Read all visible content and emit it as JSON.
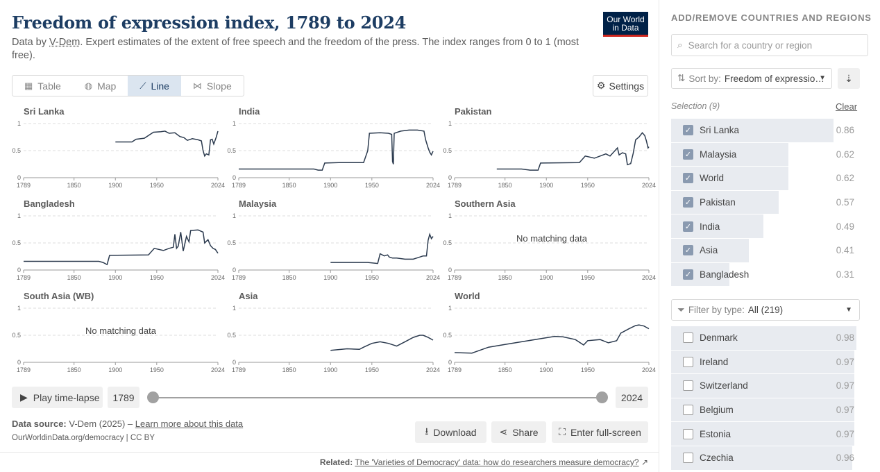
{
  "header": {
    "title": "Freedom of expression index, 1789 to 2024",
    "subtitle_prefix": "Data by ",
    "subtitle_source": "V-Dem",
    "subtitle_rest": ". Expert estimates of the extent of free speech and the freedom of the press. The index ranges from 0 to 1 (most free).",
    "logo_line1": "Our World",
    "logo_line2": "in Data"
  },
  "tabs": [
    {
      "label": "Table",
      "icon": "table-icon",
      "glyph": "▦"
    },
    {
      "label": "Map",
      "icon": "globe-icon",
      "glyph": "◍"
    },
    {
      "label": "Line",
      "icon": "line-chart-icon",
      "glyph": "⟋",
      "active": true
    },
    {
      "label": "Slope",
      "icon": "slope-icon",
      "glyph": "⋈"
    }
  ],
  "settings_label": "Settings",
  "chart_data": {
    "type": "line",
    "layout": "small-multiples",
    "x_ticks": [
      1789,
      1850,
      1900,
      1950,
      2024
    ],
    "y_ticks": [
      "0",
      "0.5",
      "1"
    ],
    "ylim": [
      0,
      1
    ],
    "xlim": [
      1789,
      2024
    ],
    "no_data_text": "No matching data",
    "panels": [
      {
        "name": "Sri Lanka",
        "points": [
          [
            1900,
            0.66
          ],
          [
            1920,
            0.66
          ],
          [
            1925,
            0.71
          ],
          [
            1935,
            0.73
          ],
          [
            1946,
            0.84
          ],
          [
            1955,
            0.85
          ],
          [
            1960,
            0.86
          ],
          [
            1965,
            0.82
          ],
          [
            1972,
            0.83
          ],
          [
            1978,
            0.76
          ],
          [
            1983,
            0.74
          ],
          [
            1987,
            0.69
          ],
          [
            1993,
            0.72
          ],
          [
            2000,
            0.7
          ],
          [
            2004,
            0.68
          ],
          [
            2006,
            0.5
          ],
          [
            2008,
            0.4
          ],
          [
            2010,
            0.44
          ],
          [
            2013,
            0.42
          ],
          [
            2015,
            0.7
          ],
          [
            2017,
            0.71
          ],
          [
            2019,
            0.62
          ],
          [
            2022,
            0.75
          ],
          [
            2024,
            0.86
          ]
        ]
      },
      {
        "name": "India",
        "points": [
          [
            1789,
            0.16
          ],
          [
            1850,
            0.16
          ],
          [
            1880,
            0.16
          ],
          [
            1885,
            0.14
          ],
          [
            1890,
            0.14
          ],
          [
            1893,
            0.27
          ],
          [
            1910,
            0.28
          ],
          [
            1940,
            0.28
          ],
          [
            1945,
            0.5
          ],
          [
            1947,
            0.82
          ],
          [
            1960,
            0.83
          ],
          [
            1970,
            0.82
          ],
          [
            1974,
            0.8
          ],
          [
            1975,
            0.3
          ],
          [
            1976,
            0.25
          ],
          [
            1977,
            0.82
          ],
          [
            1985,
            0.86
          ],
          [
            1995,
            0.88
          ],
          [
            2005,
            0.88
          ],
          [
            2013,
            0.86
          ],
          [
            2015,
            0.7
          ],
          [
            2018,
            0.55
          ],
          [
            2020,
            0.47
          ],
          [
            2022,
            0.42
          ],
          [
            2024,
            0.49
          ]
        ]
      },
      {
        "name": "Pakistan",
        "points": [
          [
            1840,
            0.16
          ],
          [
            1870,
            0.16
          ],
          [
            1880,
            0.14
          ],
          [
            1890,
            0.14
          ],
          [
            1893,
            0.27
          ],
          [
            1940,
            0.28
          ],
          [
            1947,
            0.4
          ],
          [
            1958,
            0.36
          ],
          [
            1965,
            0.4
          ],
          [
            1972,
            0.44
          ],
          [
            1977,
            0.4
          ],
          [
            1980,
            0.45
          ],
          [
            1986,
            0.55
          ],
          [
            1988,
            0.42
          ],
          [
            1992,
            0.46
          ],
          [
            1996,
            0.44
          ],
          [
            1998,
            0.24
          ],
          [
            2002,
            0.26
          ],
          [
            2005,
            0.45
          ],
          [
            2008,
            0.7
          ],
          [
            2012,
            0.75
          ],
          [
            2016,
            0.83
          ],
          [
            2019,
            0.78
          ],
          [
            2021,
            0.68
          ],
          [
            2023,
            0.55
          ],
          [
            2024,
            0.57
          ]
        ]
      },
      {
        "name": "Bangladesh",
        "points": [
          [
            1789,
            0.16
          ],
          [
            1850,
            0.16
          ],
          [
            1880,
            0.16
          ],
          [
            1885,
            0.14
          ],
          [
            1890,
            0.1
          ],
          [
            1893,
            0.27
          ],
          [
            1940,
            0.28
          ],
          [
            1947,
            0.4
          ],
          [
            1958,
            0.36
          ],
          [
            1965,
            0.4
          ],
          [
            1970,
            0.42
          ],
          [
            1972,
            0.66
          ],
          [
            1974,
            0.4
          ],
          [
            1976,
            0.44
          ],
          [
            1979,
            0.7
          ],
          [
            1982,
            0.35
          ],
          [
            1986,
            0.62
          ],
          [
            1989,
            0.52
          ],
          [
            1991,
            0.73
          ],
          [
            2000,
            0.74
          ],
          [
            2006,
            0.7
          ],
          [
            2008,
            0.5
          ],
          [
            2012,
            0.56
          ],
          [
            2015,
            0.45
          ],
          [
            2018,
            0.4
          ],
          [
            2021,
            0.38
          ],
          [
            2024,
            0.31
          ]
        ]
      },
      {
        "name": "Malaysia",
        "points": [
          [
            1900,
            0.14
          ],
          [
            1945,
            0.14
          ],
          [
            1957,
            0.12
          ],
          [
            1960,
            0.3
          ],
          [
            1965,
            0.26
          ],
          [
            1969,
            0.28
          ],
          [
            1971,
            0.24
          ],
          [
            1975,
            0.22
          ],
          [
            1980,
            0.22
          ],
          [
            1990,
            0.2
          ],
          [
            2000,
            0.2
          ],
          [
            2008,
            0.24
          ],
          [
            2012,
            0.26
          ],
          [
            2016,
            0.26
          ],
          [
            2018,
            0.55
          ],
          [
            2020,
            0.66
          ],
          [
            2022,
            0.58
          ],
          [
            2024,
            0.62
          ]
        ]
      },
      {
        "name": "Southern Asia",
        "points": []
      },
      {
        "name": "South Asia (WB)",
        "points": []
      },
      {
        "name": "Asia",
        "points": [
          [
            1900,
            0.22
          ],
          [
            1920,
            0.25
          ],
          [
            1935,
            0.24
          ],
          [
            1940,
            0.28
          ],
          [
            1950,
            0.35
          ],
          [
            1960,
            0.38
          ],
          [
            1970,
            0.35
          ],
          [
            1980,
            0.3
          ],
          [
            1990,
            0.38
          ],
          [
            2000,
            0.46
          ],
          [
            2008,
            0.5
          ],
          [
            2012,
            0.5
          ],
          [
            2018,
            0.46
          ],
          [
            2024,
            0.41
          ]
        ]
      },
      {
        "name": "World",
        "points": [
          [
            1789,
            0.18
          ],
          [
            1810,
            0.17
          ],
          [
            1830,
            0.28
          ],
          [
            1850,
            0.33
          ],
          [
            1870,
            0.38
          ],
          [
            1890,
            0.43
          ],
          [
            1910,
            0.48
          ],
          [
            1920,
            0.47
          ],
          [
            1935,
            0.42
          ],
          [
            1945,
            0.32
          ],
          [
            1950,
            0.4
          ],
          [
            1965,
            0.42
          ],
          [
            1975,
            0.36
          ],
          [
            1985,
            0.4
          ],
          [
            1990,
            0.54
          ],
          [
            2000,
            0.62
          ],
          [
            2008,
            0.68
          ],
          [
            2012,
            0.69
          ],
          [
            2018,
            0.67
          ],
          [
            2024,
            0.62
          ]
        ]
      }
    ]
  },
  "timeline": {
    "play_label": "Play time-lapse",
    "start_year": "1789",
    "end_year": "2024"
  },
  "footer": {
    "source_label": "Data source:",
    "source_value": "V-Dem (2025) –",
    "learn_more": "Learn more about this data",
    "license": "OurWorldinData.org/democracy | CC BY",
    "download": "Download",
    "share": "Share",
    "fullscreen": "Enter full-screen",
    "related_label": "Related:",
    "related_link": "The 'Varieties of Democracy' data: how do researchers measure democracy?"
  },
  "sidebar": {
    "title": "ADD/REMOVE COUNTRIES AND REGIONS",
    "search_placeholder": "Search for a country or region",
    "sort_label": "Sort by:",
    "sort_value": "Freedom of expressio…",
    "selection_label": "Selection (9)",
    "clear_label": "Clear",
    "selected": [
      {
        "name": "Sri Lanka",
        "value": "0.86",
        "v": 0.86
      },
      {
        "name": "Malaysia",
        "value": "0.62",
        "v": 0.62
      },
      {
        "name": "World",
        "value": "0.62",
        "v": 0.62
      },
      {
        "name": "Pakistan",
        "value": "0.57",
        "v": 0.57
      },
      {
        "name": "India",
        "value": "0.49",
        "v": 0.49
      },
      {
        "name": "Asia",
        "value": "0.41",
        "v": 0.41
      },
      {
        "name": "Bangladesh",
        "value": "0.31",
        "v": 0.31
      }
    ],
    "filter_label": "Filter by type:",
    "filter_value": "All (219)",
    "others": [
      {
        "name": "Denmark",
        "value": "0.98",
        "v": 0.98
      },
      {
        "name": "Ireland",
        "value": "0.97",
        "v": 0.97
      },
      {
        "name": "Switzerland",
        "value": "0.97",
        "v": 0.97
      },
      {
        "name": "Belgium",
        "value": "0.97",
        "v": 0.97
      },
      {
        "name": "Estonia",
        "value": "0.97",
        "v": 0.97
      },
      {
        "name": "Czechia",
        "value": "0.96",
        "v": 0.96
      }
    ]
  },
  "colors": {
    "title": "#1d3d63",
    "line": "#2b3a4e",
    "active_tab": "#dbe5f0"
  }
}
